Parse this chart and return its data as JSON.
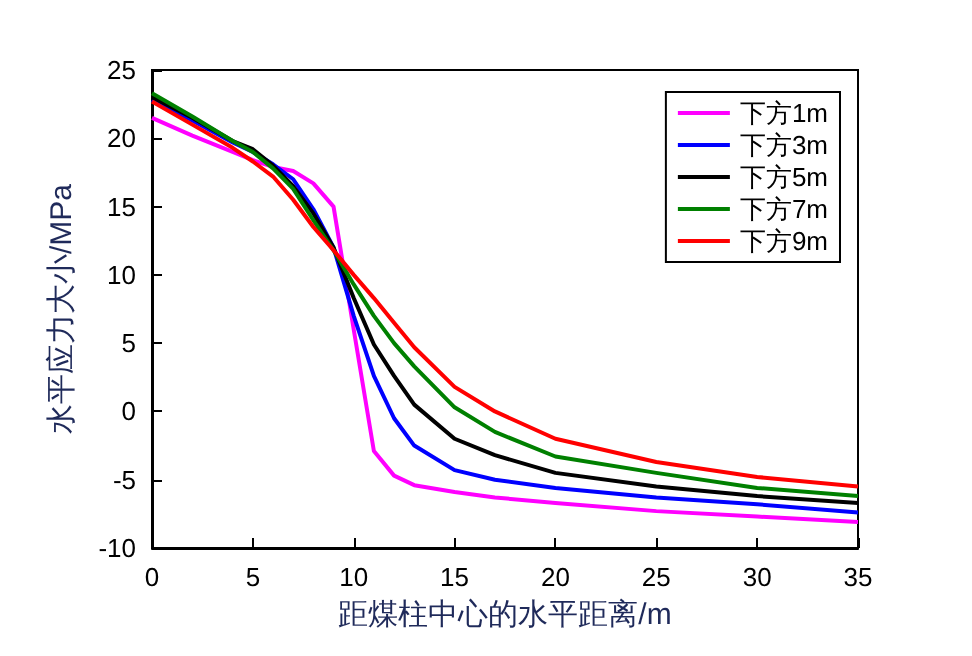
{
  "chart_data": {
    "type": "line",
    "xlabel": "距煤柱中心的水平距离/m",
    "ylabel": "水平应力大小/MPa",
    "xlim": [
      0,
      35
    ],
    "xticks": [
      0,
      5,
      10,
      15,
      20,
      25,
      30,
      35
    ],
    "ylim": [
      -10,
      25
    ],
    "yticks": [
      -10,
      -5,
      0,
      5,
      10,
      15,
      20,
      25
    ],
    "grid": false,
    "legend": "top right",
    "marker": "none",
    "line_style": "solid",
    "x": [
      0,
      2,
      4,
      5,
      6,
      7,
      8,
      9,
      10,
      11,
      12,
      13,
      15,
      17,
      20,
      25,
      30,
      35
    ],
    "series": [
      {
        "name": "下方1m",
        "color": "#ff00ff",
        "values": [
          21.5,
          20.2,
          19,
          18.4,
          17.9,
          17.6,
          16.7,
          15,
          6,
          -2.9,
          -4.7,
          -5.4,
          -5.9,
          -6.3,
          -6.7,
          -7.3,
          -7.7,
          -8.1
        ]
      },
      {
        "name": "下方3m",
        "color": "#0000ff",
        "values": [
          22.8,
          21.3,
          19.7,
          19,
          18.1,
          17,
          14.8,
          12,
          7,
          2.6,
          -0.5,
          -2.5,
          -4.3,
          -5,
          -5.6,
          -6.3,
          -6.8,
          -7.4
        ]
      },
      {
        "name": "下方5m",
        "color": "#000000",
        "values": [
          23,
          21.5,
          19.8,
          19.2,
          18,
          16.5,
          14.5,
          12,
          8.3,
          4.9,
          2.6,
          0.5,
          -2,
          -3.2,
          -4.5,
          -5.5,
          -6.2,
          -6.7
        ]
      },
      {
        "name": "下方7m",
        "color": "#008000",
        "values": [
          23.3,
          21.6,
          19.8,
          19,
          17.8,
          16.3,
          14,
          11.8,
          9.3,
          7,
          5,
          3.3,
          0.3,
          -1.5,
          -3.3,
          -4.5,
          -5.6,
          -6.2
        ]
      },
      {
        "name": "下方9m",
        "color": "#ff0000",
        "values": [
          22.7,
          21,
          19.3,
          18.3,
          17.2,
          15.5,
          13.5,
          11.8,
          10,
          8.3,
          6.5,
          4.7,
          1.8,
          0,
          -2,
          -3.7,
          -4.8,
          -5.5
        ]
      }
    ]
  }
}
